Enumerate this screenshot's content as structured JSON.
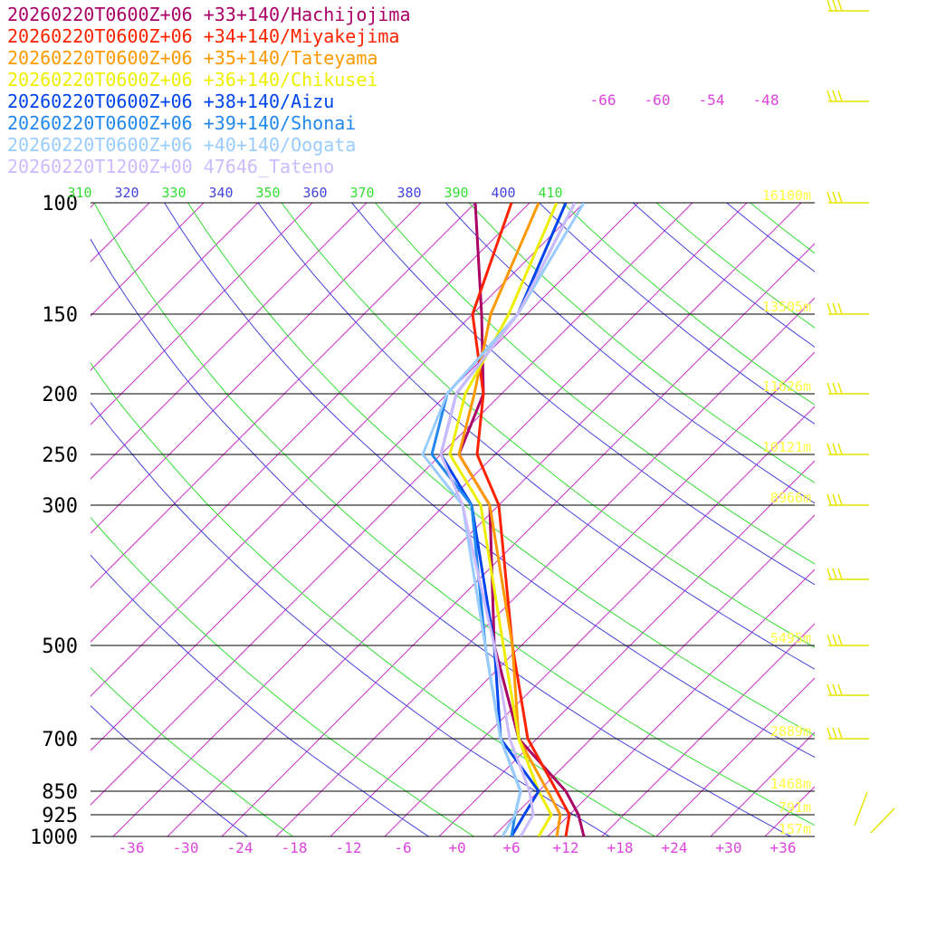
{
  "chart_data": {
    "type": "line",
    "chart_kind": "skew-T log-p sounding",
    "legend_placement": "top-left",
    "pressure_levels": [
      100,
      150,
      200,
      250,
      300,
      500,
      700,
      850,
      925,
      1000
    ],
    "pressure_labels": [
      "100",
      "150",
      "200",
      "250",
      "300",
      "500",
      "700",
      "850",
      "925",
      "1000"
    ],
    "height_labels": [
      "16100m",
      "13505m",
      "11626m",
      "10121m",
      "8966m",
      "5495m",
      "2889m",
      "1468m",
      "791m",
      "157m"
    ],
    "temperature_ticks": [
      "-36",
      "-30",
      "-24",
      "-18",
      "-12",
      "-6",
      "+0",
      "+6",
      "+12",
      "+18",
      "+24",
      "+30",
      "+36"
    ],
    "isotherm_top_labels": [
      "-66",
      "-60",
      "-54",
      "-48"
    ],
    "theta_labels": [
      "310",
      "320",
      "330",
      "340",
      "350",
      "360",
      "370",
      "380",
      "390",
      "400",
      "410"
    ],
    "colors": {
      "isotherm": "#cc33cc",
      "theta": "#4444dd",
      "theta_e": "#33dd33",
      "isobar": "#000000",
      "height_text": "#ffff44",
      "wind_barb": "#e6e600"
    },
    "series": [
      {
        "name": "20260220T0600Z+06 +33+140/Hachijojima",
        "color": "#aa0066",
        "temperature": [
          [
            100,
            -68
          ],
          [
            150,
            -55
          ],
          [
            200,
            -46
          ],
          [
            250,
            -42
          ],
          [
            300,
            -33
          ],
          [
            500,
            -17
          ],
          [
            700,
            -4
          ],
          [
            850,
            7
          ],
          [
            925,
            11
          ],
          [
            1000,
            14
          ]
        ]
      },
      {
        "name": "20260220T0600Z+06 +34+140/Miyakejima",
        "color": "#ff2200",
        "temperature": [
          [
            100,
            -64
          ],
          [
            150,
            -56
          ],
          [
            200,
            -46
          ],
          [
            250,
            -40
          ],
          [
            300,
            -32
          ],
          [
            500,
            -15
          ],
          [
            700,
            -3
          ],
          [
            850,
            6
          ],
          [
            925,
            10
          ],
          [
            1000,
            12
          ]
        ]
      },
      {
        "name": "20260220T0600Z+06 +35+140/Tateyama",
        "color": "#ff9900",
        "temperature": [
          [
            100,
            -61
          ],
          [
            150,
            -54
          ],
          [
            200,
            -47
          ],
          [
            250,
            -42
          ],
          [
            300,
            -33
          ],
          [
            500,
            -15
          ],
          [
            700,
            -4
          ],
          [
            850,
            5
          ],
          [
            925,
            9
          ],
          [
            1000,
            11
          ]
        ]
      },
      {
        "name": "20260220T0600Z+06 +36+140/Chikusei",
        "color": "#eeee00",
        "temperature": [
          [
            100,
            -59
          ],
          [
            150,
            -52
          ],
          [
            200,
            -48
          ],
          [
            250,
            -43
          ],
          [
            300,
            -34
          ],
          [
            500,
            -16
          ],
          [
            700,
            -4
          ],
          [
            850,
            4
          ],
          [
            925,
            8
          ],
          [
            1000,
            9
          ]
        ]
      },
      {
        "name": "20260220T0600Z+06 +38+140/Aizu",
        "color": "#0044ee",
        "temperature": [
          [
            100,
            -58
          ],
          [
            150,
            -51
          ],
          [
            200,
            -49
          ],
          [
            250,
            -44
          ],
          [
            300,
            -35
          ],
          [
            500,
            -17
          ],
          [
            700,
            -6
          ],
          [
            850,
            4
          ],
          [
            925,
            5
          ],
          [
            1000,
            6
          ]
        ]
      },
      {
        "name": "20260220T0600Z+06 +39+140/Shonai",
        "color": "#2288ee",
        "temperature": [
          [
            100,
            -57
          ],
          [
            150,
            -51
          ],
          [
            200,
            -50
          ],
          [
            250,
            -45
          ],
          [
            300,
            -35
          ],
          [
            500,
            -18
          ],
          [
            700,
            -6
          ],
          [
            850,
            2
          ],
          [
            925,
            4
          ],
          [
            1000,
            6
          ]
        ]
      },
      {
        "name": "20260220T0600Z+06 +40+140/Oogata",
        "color": "#99ccff",
        "temperature": [
          [
            100,
            -56
          ],
          [
            150,
            -51
          ],
          [
            200,
            -50
          ],
          [
            250,
            -46
          ],
          [
            300,
            -36
          ],
          [
            500,
            -18
          ],
          [
            700,
            -6
          ],
          [
            850,
            2
          ],
          [
            925,
            4
          ],
          [
            1000,
            5
          ]
        ]
      },
      {
        "name": "20260220T1200Z+00 47646_Tateno",
        "color": "#ccbbff",
        "temperature": [
          [
            100,
            -57
          ],
          [
            150,
            -51
          ],
          [
            200,
            -49
          ],
          [
            250,
            -44
          ],
          [
            300,
            -36
          ],
          [
            500,
            -17
          ],
          [
            700,
            -5
          ],
          [
            850,
            3
          ],
          [
            925,
            6
          ],
          [
            1000,
            7
          ]
        ]
      }
    ]
  }
}
